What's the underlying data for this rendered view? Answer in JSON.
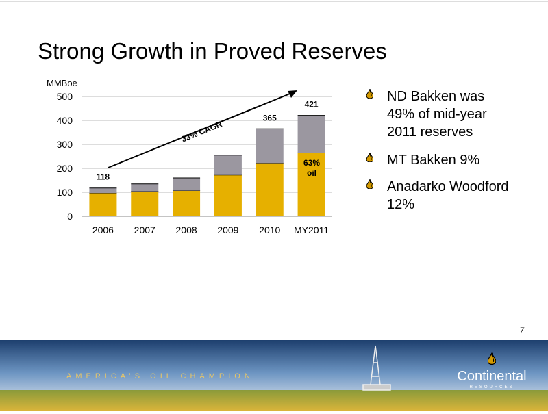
{
  "title": "Strong Growth in Proved Reserves",
  "bullets": [
    [
      "ND Bakken was",
      "49% of mid-year",
      "2011 reserves"
    ],
    [
      "MT Bakken 9%"
    ],
    [
      "Anadarko Woodford",
      "12%"
    ]
  ],
  "page_number": "7",
  "banner": {
    "slogan": "AMERICA’S OIL CHAMPION",
    "logo": "Continental",
    "logo_sub": "RESOURCES"
  },
  "chart_data": {
    "type": "stacked_bar",
    "y_label": "MMBoe",
    "categories": [
      "2006",
      "2007",
      "2008",
      "2009",
      "2010",
      "MY2011"
    ],
    "series": [
      {
        "color": "#e6b000",
        "values": [
          97,
          104,
          107,
          172,
          222,
          265
        ]
      },
      {
        "color": "#9b97a0",
        "values": [
          21,
          31,
          53,
          83,
          143,
          156
        ]
      }
    ],
    "totals": [
      118,
      null,
      null,
      null,
      365,
      421
    ],
    "annotations": [
      "33% CAGR",
      "63%",
      "oil"
    ],
    "ylim": [
      0,
      500
    ],
    "yticks": [
      0,
      100,
      200,
      300,
      400,
      500
    ],
    "grid": true
  }
}
